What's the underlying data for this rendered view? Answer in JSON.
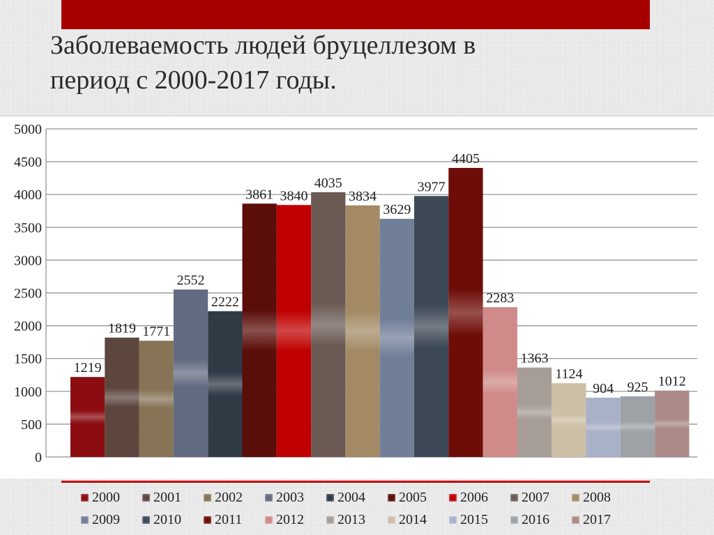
{
  "slide": {
    "title_line1": "Заболеваемость людей бруцеллезом  в",
    "title_line2": "период с 2000-2017 годы."
  },
  "chart_data": {
    "type": "bar",
    "categories": [
      "2000",
      "2001",
      "2002",
      "2003",
      "2004",
      "2005",
      "2006",
      "2007",
      "2008",
      "2009",
      "2010",
      "2011",
      "2012",
      "2013",
      "2014",
      "2015",
      "2016",
      "2017"
    ],
    "values": [
      1219,
      1819,
      1771,
      2552,
      2222,
      3861,
      3840,
      4035,
      3834,
      3629,
      3977,
      4405,
      2283,
      1363,
      1124,
      904,
      925,
      1012
    ],
    "colors": [
      "#8b0d12",
      "#5c463e",
      "#877456",
      "#636b82",
      "#2f3a45",
      "#5b0d0a",
      "#c00000",
      "#6b5a54",
      "#a38a64",
      "#717e98",
      "#3e4957",
      "#6e0d08",
      "#cf8a89",
      "#a79d97",
      "#cdbfa5",
      "#a9b1c9",
      "#9ea2a6",
      "#ab8a88"
    ],
    "ylim": [
      0,
      5000
    ],
    "yticks": [
      0,
      500,
      1000,
      1500,
      2000,
      2500,
      3000,
      3500,
      4000,
      4500,
      5000
    ],
    "grid": true,
    "legend": "bottom"
  }
}
